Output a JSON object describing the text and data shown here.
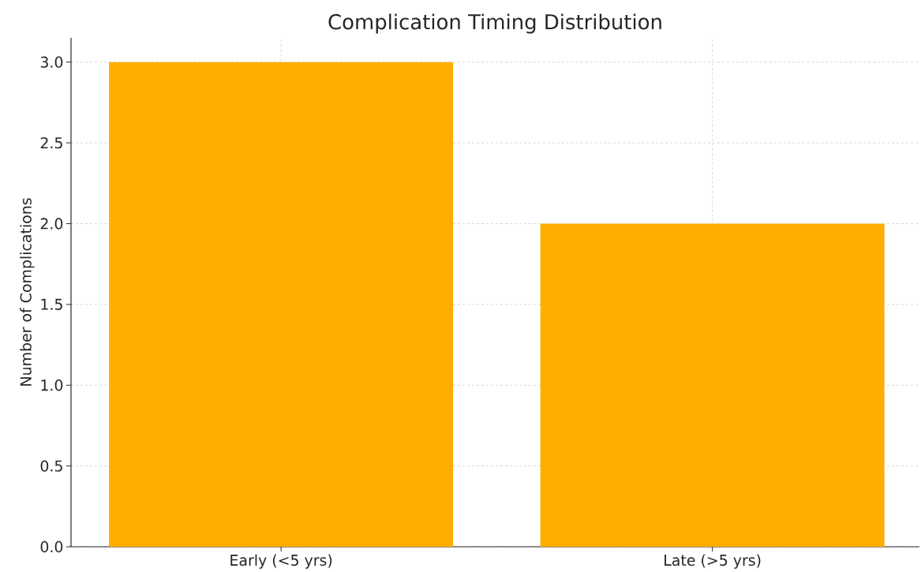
{
  "chart_data": {
    "type": "bar",
    "title": "Complication Timing Distribution",
    "ylabel": "Number of Complications",
    "categories": [
      "Early (<5 yrs)",
      "Late (>5 yrs)"
    ],
    "values": [
      3,
      2
    ],
    "color": "#ffae00",
    "ylim": [
      0,
      3.15
    ],
    "yticks": [
      {
        "value": 0,
        "label": "0.0"
      },
      0.5,
      {
        "value": 1,
        "label": "1.0"
      },
      1.5,
      {
        "value": 2,
        "label": "2.0"
      },
      2.5,
      {
        "value": 3,
        "label": "3.0"
      }
    ],
    "grid": true
  }
}
